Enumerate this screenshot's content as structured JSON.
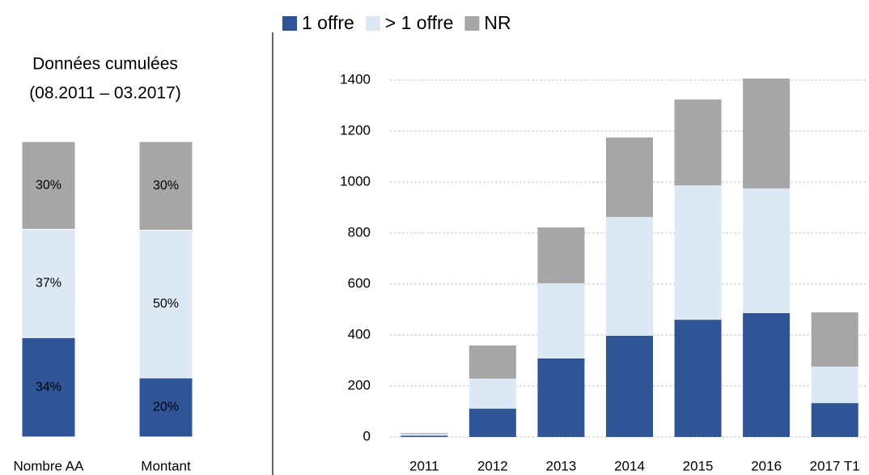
{
  "chart_data": [
    {
      "type": "stacked_bar_percent",
      "title": [
        "Données cumulées",
        "(08.2011 – 03.2017)"
      ],
      "categories": [
        "Nombre AA",
        "Montant"
      ],
      "series": [
        {
          "color": "#2f5597",
          "values": [
            34,
            20
          ],
          "value_labels": [
            "34%",
            "20%"
          ]
        },
        {
          "color": "#dde8f5",
          "values": [
            37,
            50
          ],
          "value_labels": [
            "37%",
            "50%"
          ]
        },
        {
          "color": "#a6a6a6",
          "values": [
            30,
            30
          ],
          "value_labels": [
            "30%",
            "30%"
          ]
        }
      ]
    },
    {
      "type": "stacked_bar",
      "categories": [
        "2011",
        "2012",
        "2013",
        "2014",
        "2015",
        "2016",
        "2017 T1"
      ],
      "series": [
        {
          "name": "1 offre",
          "color": "#2f5597",
          "values": [
            5,
            111,
            308,
            397,
            460,
            486,
            133
          ]
        },
        {
          "name": "> 1 offre",
          "color": "#dde8f5",
          "values": [
            7,
            118,
            295,
            466,
            527,
            489,
            143
          ]
        },
        {
          "name": "NR",
          "color": "#a6a6a6",
          "values": [
            3,
            130,
            219,
            312,
            337,
            431,
            213
          ]
        }
      ],
      "ylim": [
        0,
        1400
      ],
      "yticks": [
        0,
        200,
        400,
        600,
        800,
        1000,
        1200,
        1400
      ],
      "grid": true,
      "legend": "top"
    }
  ]
}
